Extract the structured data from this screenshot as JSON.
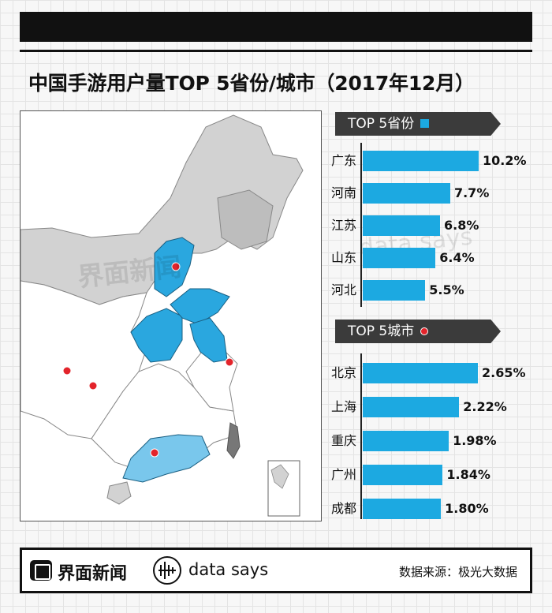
{
  "title": "中国手游用户量TOP 5省份/城市（2017年12月）",
  "sections": {
    "provinces_title": "TOP 5省份",
    "cities_title": "TOP 5城市"
  },
  "colors": {
    "bar": "#1ca9e1",
    "city_dot": "#e3242b",
    "top_province_fill": "#2aa7df",
    "guangdong_fill": "#79c7ec",
    "other_province_fill": "#ffffff",
    "northern_region_fill": "#d2d2d2",
    "inset_label": "南海诸岛"
  },
  "watermarks": {
    "brand": "界面新闻",
    "data": "data says"
  },
  "chart_data": [
    {
      "type": "bar",
      "orientation": "horizontal",
      "title": "TOP 5省份",
      "categories": [
        "广东",
        "河南",
        "江苏",
        "山东",
        "河北"
      ],
      "values": [
        10.2,
        7.7,
        6.8,
        6.4,
        5.5
      ],
      "value_labels": [
        "10.2%",
        "7.7%",
        "6.8%",
        "6.4%",
        "5.5%"
      ],
      "unit": "%"
    },
    {
      "type": "bar",
      "orientation": "horizontal",
      "title": "TOP 5城市",
      "categories": [
        "北京",
        "上海",
        "重庆",
        "广州",
        "成都"
      ],
      "values": [
        2.65,
        2.22,
        1.98,
        1.84,
        1.8
      ],
      "value_labels": [
        "2.65%",
        "2.22%",
        "1.98%",
        "1.84%",
        "1.80%"
      ],
      "unit": "%"
    }
  ],
  "footer": {
    "brand_name": "界面新闻",
    "data_brand": "data says",
    "source": "数据来源：极光大数据"
  }
}
